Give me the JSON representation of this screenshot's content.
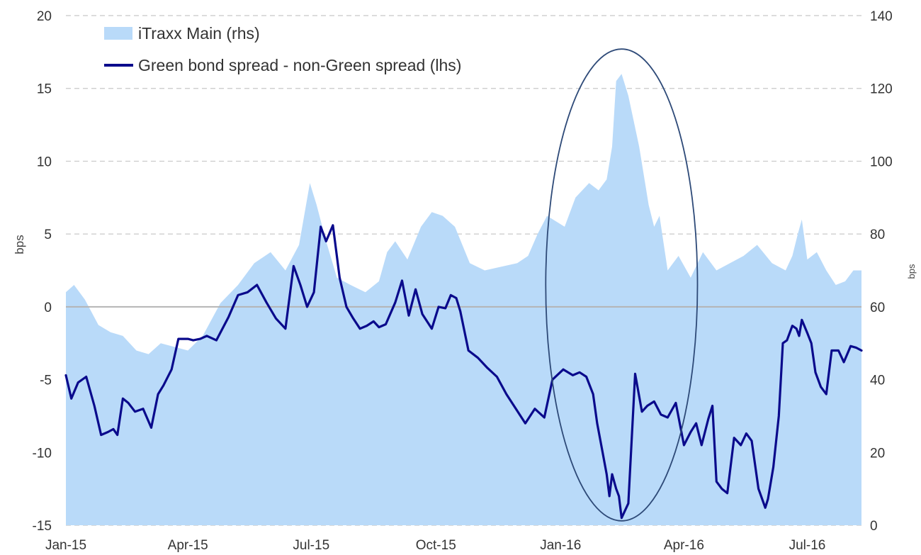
{
  "chart_data": {
    "type": "line",
    "ylabel": "bps",
    "y2label": "bps",
    "xlim": [
      "2015-01-01",
      "2016-08-10"
    ],
    "ylim": [
      -15,
      20
    ],
    "y2lim": [
      0,
      140
    ],
    "yticks": [
      "20",
      "15",
      "10",
      "5",
      "0",
      "-5",
      "-10",
      "-15"
    ],
    "y2ticks": [
      "140",
      "120",
      "100",
      "80",
      "60",
      "40",
      "20",
      "0"
    ],
    "xticks": [
      {
        "label": "Jan-15",
        "date": "2015-01-01"
      },
      {
        "label": "Apr-15",
        "date": "2015-04-01"
      },
      {
        "label": "Jul-15",
        "date": "2015-07-01"
      },
      {
        "label": "Oct-15",
        "date": "2015-10-01"
      },
      {
        "label": "Jan-16",
        "date": "2016-01-01"
      },
      {
        "label": "Apr-16",
        "date": "2016-04-01"
      },
      {
        "label": "Jul-16",
        "date": "2016-07-01"
      }
    ],
    "grid": true,
    "legend_position": "top-left",
    "colors": {
      "area": "#b9daf9",
      "line": "#0a0a8c",
      "ellipse": "#2e4a78",
      "grid": "#c8c8c8",
      "zero_line": "#b4b4b4"
    },
    "series": [
      {
        "name": "iTraxx Main (rhs)",
        "type": "area",
        "axis": "right",
        "x": [
          "2015-01-01",
          "2015-01-07",
          "2015-01-15",
          "2015-01-25",
          "2015-02-03",
          "2015-02-12",
          "2015-02-22",
          "2015-03-03",
          "2015-03-12",
          "2015-03-22",
          "2015-04-01",
          "2015-04-12",
          "2015-04-25",
          "2015-05-08",
          "2015-05-20",
          "2015-06-01",
          "2015-06-12",
          "2015-06-22",
          "2015-06-30",
          "2015-07-05",
          "2015-07-12",
          "2015-07-20",
          "2015-07-30",
          "2015-08-10",
          "2015-08-20",
          "2015-08-26",
          "2015-09-01",
          "2015-09-10",
          "2015-09-20",
          "2015-09-28",
          "2015-10-06",
          "2015-10-15",
          "2015-10-26",
          "2015-11-06",
          "2015-11-18",
          "2015-11-30",
          "2015-12-08",
          "2015-12-15",
          "2015-12-22",
          "2016-01-04",
          "2016-01-12",
          "2016-01-22",
          "2016-01-29",
          "2016-02-04",
          "2016-02-08",
          "2016-02-11",
          "2016-02-15",
          "2016-02-20",
          "2016-02-28",
          "2016-03-06",
          "2016-03-10",
          "2016-03-14",
          "2016-03-20",
          "2016-03-28",
          "2016-04-06",
          "2016-04-15",
          "2016-04-25",
          "2016-05-05",
          "2016-05-15",
          "2016-05-25",
          "2016-06-05",
          "2016-06-15",
          "2016-06-20",
          "2016-06-24",
          "2016-06-27",
          "2016-07-01",
          "2016-07-08",
          "2016-07-15",
          "2016-07-22",
          "2016-07-29",
          "2016-08-04",
          "2016-08-10"
        ],
        "values": [
          64,
          66,
          62,
          55,
          53,
          52,
          48,
          47,
          50,
          49,
          48,
          52,
          61,
          66,
          72,
          75,
          70,
          77,
          94,
          88,
          78,
          68,
          66,
          64,
          67,
          75,
          78,
          73,
          82,
          86,
          85,
          82,
          72,
          70,
          71,
          72,
          74,
          80,
          85,
          82,
          90,
          94,
          92,
          95,
          104,
          122,
          124,
          118,
          104,
          88,
          82,
          85,
          70,
          74,
          68,
          75,
          70,
          72,
          74,
          77,
          72,
          70,
          74,
          80,
          84,
          73,
          75,
          70,
          66,
          67,
          70,
          70
        ]
      },
      {
        "name": "Green bond spread - non-Green spread (lhs)",
        "type": "line",
        "axis": "left",
        "x": [
          "2015-01-01",
          "2015-01-05",
          "2015-01-10",
          "2015-01-16",
          "2015-01-22",
          "2015-01-27",
          "2015-02-01",
          "2015-02-05",
          "2015-02-08",
          "2015-02-12",
          "2015-02-16",
          "2015-02-21",
          "2015-02-27",
          "2015-03-05",
          "2015-03-10",
          "2015-03-14",
          "2015-03-20",
          "2015-03-25",
          "2015-04-01",
          "2015-04-05",
          "2015-04-10",
          "2015-04-15",
          "2015-04-22",
          "2015-05-01",
          "2015-05-08",
          "2015-05-15",
          "2015-05-22",
          "2015-05-29",
          "2015-06-05",
          "2015-06-12",
          "2015-06-18",
          "2015-06-23",
          "2015-06-28",
          "2015-07-03",
          "2015-07-08",
          "2015-07-12",
          "2015-07-17",
          "2015-07-22",
          "2015-07-27",
          "2015-08-01",
          "2015-08-06",
          "2015-08-11",
          "2015-08-16",
          "2015-08-20",
          "2015-08-25",
          "2015-09-01",
          "2015-09-06",
          "2015-09-11",
          "2015-09-16",
          "2015-09-21",
          "2015-09-28",
          "2015-10-03",
          "2015-10-08",
          "2015-10-12",
          "2015-10-16",
          "2015-10-19",
          "2015-10-25",
          "2015-11-01",
          "2015-11-08",
          "2015-11-15",
          "2015-11-22",
          "2015-11-29",
          "2015-12-06",
          "2015-12-13",
          "2015-12-20",
          "2015-12-26",
          "2016-01-03",
          "2016-01-10",
          "2016-01-15",
          "2016-01-20",
          "2016-01-25",
          "2016-01-28",
          "2016-02-01",
          "2016-02-04",
          "2016-02-06",
          "2016-02-08",
          "2016-02-11",
          "2016-02-13",
          "2016-02-15",
          "2016-02-20",
          "2016-02-25",
          "2016-03-01",
          "2016-03-05",
          "2016-03-10",
          "2016-03-15",
          "2016-03-20",
          "2016-03-26",
          "2016-04-01",
          "2016-04-06",
          "2016-04-10",
          "2016-04-14",
          "2016-04-19",
          "2016-04-22",
          "2016-04-25",
          "2016-04-29",
          "2016-05-03",
          "2016-05-08",
          "2016-05-13",
          "2016-05-17",
          "2016-05-21",
          "2016-05-26",
          "2016-05-31",
          "2016-06-02",
          "2016-06-06",
          "2016-06-10",
          "2016-06-13",
          "2016-06-16",
          "2016-06-20",
          "2016-06-23",
          "2016-06-25",
          "2016-06-27",
          "2016-07-01",
          "2016-07-04",
          "2016-07-07",
          "2016-07-11",
          "2016-07-15",
          "2016-07-19",
          "2016-07-24",
          "2016-07-28",
          "2016-08-02",
          "2016-08-06",
          "2016-08-10"
        ],
        "values": [
          -4.7,
          -6.3,
          -5.2,
          -4.8,
          -6.8,
          -8.8,
          -8.6,
          -8.4,
          -8.8,
          -6.3,
          -6.6,
          -7.2,
          -7.0,
          -8.3,
          -6.0,
          -5.4,
          -4.3,
          -2.2,
          -2.2,
          -2.3,
          -2.2,
          -2.0,
          -2.3,
          -0.7,
          0.8,
          1.0,
          1.5,
          0.3,
          -0.8,
          -1.5,
          2.8,
          1.5,
          0.0,
          1.0,
          5.5,
          4.5,
          5.6,
          2.0,
          0.0,
          -0.8,
          -1.5,
          -1.3,
          -1.0,
          -1.4,
          -1.2,
          0.3,
          1.8,
          -0.6,
          1.2,
          -0.5,
          -1.5,
          0.0,
          -0.1,
          0.8,
          0.6,
          -0.3,
          -3.0,
          -3.5,
          -4.2,
          -4.8,
          -6.0,
          -7.0,
          -8.0,
          -7.0,
          -7.6,
          -5.0,
          -4.3,
          -4.7,
          -4.5,
          -4.8,
          -6.0,
          -8.0,
          -10.0,
          -11.5,
          -13.0,
          -11.5,
          -12.5,
          -13.0,
          -14.5,
          -13.5,
          -4.6,
          -7.2,
          -6.8,
          -6.5,
          -7.4,
          -7.6,
          -6.6,
          -9.5,
          -8.6,
          -8.0,
          -9.5,
          -7.7,
          -6.8,
          -12.0,
          -12.5,
          -12.8,
          -9.0,
          -9.5,
          -8.7,
          -9.2,
          -12.5,
          -13.8,
          -13.2,
          -11.0,
          -7.5,
          -2.5,
          -2.3,
          -1.3,
          -1.5,
          -2.0,
          -0.9,
          -1.8,
          -2.5,
          -4.5,
          -5.5,
          -6.0,
          -3.0,
          -3.0,
          -3.8,
          -2.7,
          -2.8,
          -3.0
        ]
      }
    ],
    "annotations": [
      {
        "type": "ellipse",
        "center": [
          "2016-02-15",
          1.5
        ],
        "semi_axis_x_days": 56,
        "semi_axis_y": 16.2
      }
    ]
  }
}
